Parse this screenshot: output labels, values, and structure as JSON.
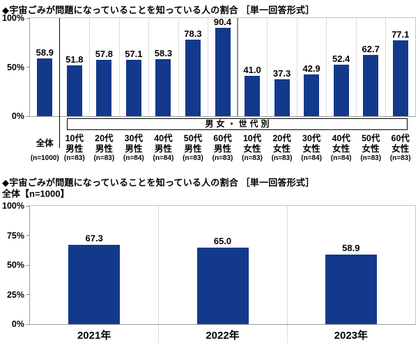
{
  "accent_color": "#12398c",
  "chart_data": [
    {
      "type": "bar",
      "title": "◆宇宙ごみが問題になっていることを知っている人の割合 ［単一回答形式］",
      "xlabel": "",
      "ylabel": "",
      "ylim": [
        0,
        100
      ],
      "yticks": [
        100,
        50,
        0
      ],
      "grid": false,
      "legend": "none",
      "bar_color": "#12398c",
      "group_label": "男女・世代別",
      "categories": [
        "全体",
        "10代男性",
        "20代男性",
        "30代男性",
        "40代男性",
        "50代男性",
        "60代男性",
        "10代女性",
        "20代女性",
        "30代女性",
        "40代女性",
        "50代女性",
        "60代女性"
      ],
      "category_display": [
        [
          "全体"
        ],
        [
          "10代",
          "男性"
        ],
        [
          "20代",
          "男性"
        ],
        [
          "30代",
          "男性"
        ],
        [
          "40代",
          "男性"
        ],
        [
          "50代",
          "男性"
        ],
        [
          "60代",
          "男性"
        ],
        [
          "10代",
          "女性"
        ],
        [
          "20代",
          "女性"
        ],
        [
          "30代",
          "女性"
        ],
        [
          "40代",
          "女性"
        ],
        [
          "50代",
          "女性"
        ],
        [
          "60代",
          "女性"
        ]
      ],
      "sample_sizes": [
        "(n=1000)",
        "(n=83)",
        "(n=83)",
        "(n=84)",
        "(n=84)",
        "(n=83)",
        "(n=83)",
        "(n=83)",
        "(n=83)",
        "(n=84)",
        "(n=84)",
        "(n=83)",
        "(n=83)"
      ],
      "values": [
        58.9,
        51.8,
        57.8,
        57.1,
        58.3,
        78.3,
        90.4,
        41.0,
        37.3,
        42.9,
        52.4,
        62.7,
        77.1
      ]
    },
    {
      "type": "bar",
      "title": "◆宇宙ごみが問題になっていることを知っている人の割合 ［単一回答形式］",
      "subtitle": "全体【n=1000】",
      "xlabel": "",
      "ylabel": "",
      "ylim": [
        0,
        100
      ],
      "yticks": [
        100,
        75,
        50,
        25,
        0
      ],
      "grid": false,
      "legend": "none",
      "bar_color": "#12398c",
      "categories": [
        "2021年",
        "2022年",
        "2023年"
      ],
      "values": [
        67.3,
        65.0,
        58.9
      ]
    }
  ]
}
